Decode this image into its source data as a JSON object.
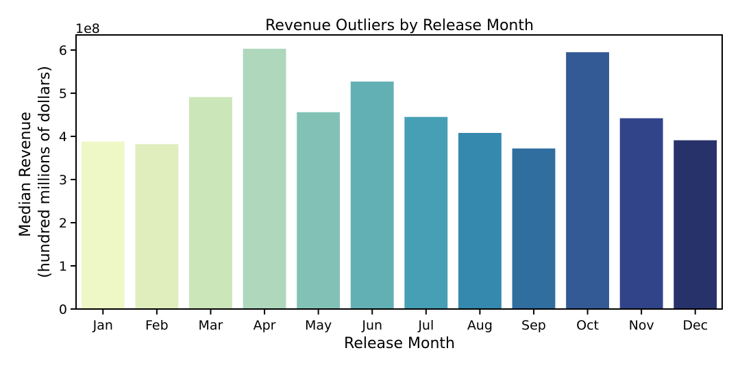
{
  "chart_data": {
    "type": "bar",
    "title": "Revenue Outliers by Release Month",
    "xlabel": "Release Month",
    "ylabel": [
      "Median Revenue",
      "(hundred millions of dollars)"
    ],
    "y_offset_label": "1e8",
    "categories": [
      "Jan",
      "Feb",
      "Mar",
      "Apr",
      "May",
      "Jun",
      "Jul",
      "Aug",
      "Sep",
      "Oct",
      "Nov",
      "Dec"
    ],
    "values": [
      388000000,
      382000000,
      491000000,
      603000000,
      456000000,
      527000000,
      445000000,
      408000000,
      372000000,
      595000000,
      442000000,
      391000000
    ],
    "colors": [
      "#eef7c6",
      "#e0edbd",
      "#cbe6b8",
      "#aed7bc",
      "#82c2b6",
      "#62b0b4",
      "#469fb4",
      "#3589ae",
      "#306ea0",
      "#335a95",
      "#324489",
      "#28326a"
    ],
    "ylim": [
      0,
      635000000
    ],
    "yticks": [
      0,
      1,
      2,
      3,
      4,
      5,
      6
    ],
    "grid": false,
    "legend": "none"
  }
}
